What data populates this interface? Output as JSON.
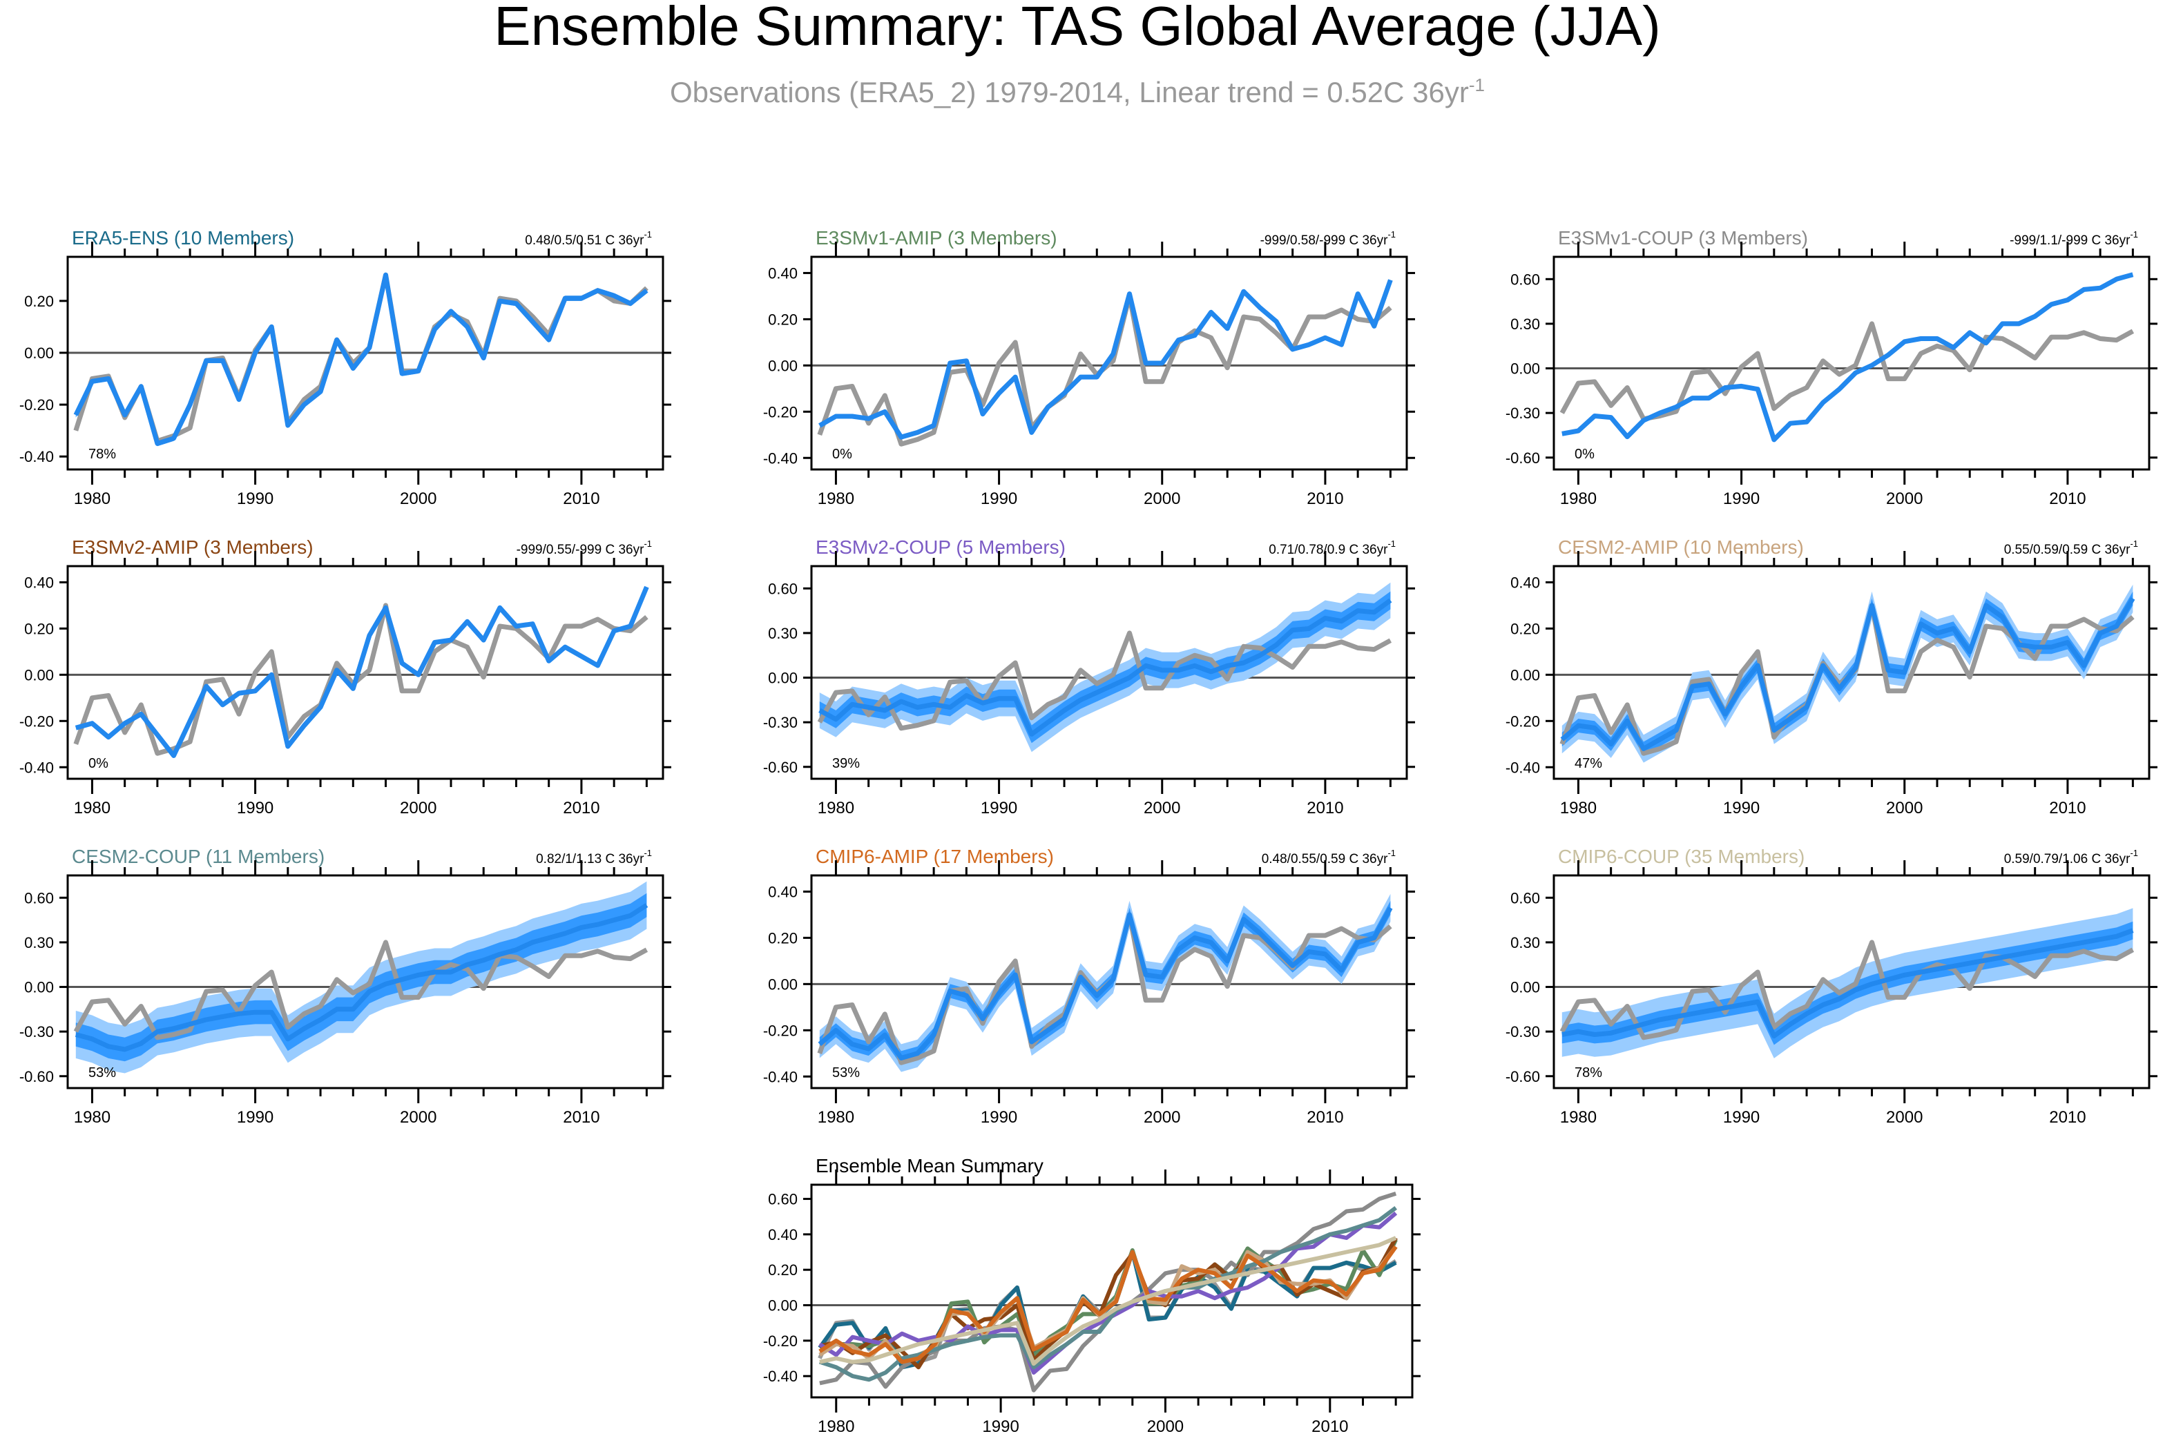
{
  "title": "Ensemble Summary: TAS Global Average (JJA)",
  "subtitle": "Observations (ERA5_2) 1979-2014, Linear trend = 0.52C 36yr",
  "subtitle_sup": "-1",
  "colors": {
    "observation": "#999999",
    "ensemble_mean": "#2288ee",
    "band_inner": "#3399ff",
    "band_outer": "#99ccff",
    "zero_line": "#555555"
  },
  "chart_data": {
    "type": "line",
    "x_range": [
      1978.5,
      2015.0
    ],
    "x_ticks": [
      1980,
      1990,
      2000,
      2010
    ],
    "observation": {
      "name": "ERA5_2",
      "years": [
        1979,
        1980,
        1981,
        1982,
        1983,
        1984,
        1985,
        1986,
        1987,
        1988,
        1989,
        1990,
        1991,
        1992,
        1993,
        1994,
        1995,
        1996,
        1997,
        1998,
        1999,
        2000,
        2001,
        2002,
        2003,
        2004,
        2005,
        2006,
        2007,
        2008,
        2009,
        2010,
        2011,
        2012,
        2013,
        2014
      ],
      "values": [
        -0.3,
        -0.1,
        -0.09,
        -0.25,
        -0.13,
        -0.34,
        -0.32,
        -0.29,
        -0.03,
        -0.02,
        -0.17,
        0.01,
        0.1,
        -0.27,
        -0.18,
        -0.13,
        0.05,
        -0.04,
        0.02,
        0.3,
        -0.07,
        -0.07,
        0.1,
        0.15,
        0.12,
        -0.01,
        0.21,
        0.2,
        0.14,
        0.07,
        0.21,
        0.21,
        0.24,
        0.2,
        0.19,
        0.25
      ]
    },
    "panels": [
      {
        "title": "ERA5-ENS (10 Members)",
        "title_color": "#1a6b8a",
        "trend": "0.48/0.5/0.51 C 36yr",
        "trend_sup": "-1",
        "percent": "78%",
        "yticks": [
          "0.20",
          "0.00",
          "-0.20",
          "-0.40"
        ],
        "ylim": [
          -0.45,
          0.37
        ],
        "x_labels": [
          "1980",
          "1990",
          "2000",
          "2010"
        ],
        "mean": [
          -0.24,
          -0.11,
          -0.1,
          -0.24,
          -0.13,
          -0.35,
          -0.33,
          -0.2,
          -0.03,
          -0.03,
          -0.18,
          0.0,
          0.1,
          -0.28,
          -0.2,
          -0.15,
          0.05,
          -0.06,
          0.02,
          0.3,
          -0.08,
          -0.07,
          0.09,
          0.16,
          0.1,
          -0.02,
          0.2,
          0.19,
          0.12,
          0.05,
          0.21,
          0.21,
          0.24,
          0.22,
          0.19,
          0.24
        ],
        "band_inner": 0.01,
        "band_outer": 0.01
      },
      {
        "title": "E3SMv1-AMIP (3 Members)",
        "title_color": "#5e8a5e",
        "trend": "-999/0.58/-999 C 36yr",
        "trend_sup": "-1",
        "percent": "0%",
        "yticks": [
          "0.40",
          "0.20",
          "0.00",
          "-0.20",
          "-0.40"
        ],
        "ylim": [
          -0.45,
          0.47
        ],
        "x_labels": [
          "1980",
          "1990",
          "2000",
          "2010"
        ],
        "mean": [
          -0.26,
          -0.22,
          -0.22,
          -0.23,
          -0.2,
          -0.31,
          -0.29,
          -0.26,
          0.01,
          0.02,
          -0.21,
          -0.12,
          -0.05,
          -0.29,
          -0.18,
          -0.12,
          -0.05,
          -0.05,
          0.05,
          0.31,
          0.01,
          0.01,
          0.11,
          0.13,
          0.23,
          0.16,
          0.32,
          0.25,
          0.19,
          0.07,
          0.09,
          0.12,
          0.09,
          0.31,
          0.17,
          0.37
        ],
        "band_inner": 0.0,
        "band_outer": 0.0
      },
      {
        "title": "E3SMv1-COUP (3 Members)",
        "title_color": "#8a8a8a",
        "trend": "-999/1.1/-999 C 36yr",
        "trend_sup": "-1",
        "percent": "0%",
        "yticks": [
          "0.60",
          "0.30",
          "0.00",
          "-0.30",
          "-0.60"
        ],
        "ylim": [
          -0.68,
          0.75
        ],
        "x_labels": [
          "1980",
          "1990",
          "2000",
          "2010"
        ],
        "mean": [
          -0.44,
          -0.42,
          -0.32,
          -0.33,
          -0.46,
          -0.35,
          -0.3,
          -0.26,
          -0.2,
          -0.2,
          -0.13,
          -0.12,
          -0.14,
          -0.48,
          -0.37,
          -0.36,
          -0.23,
          -0.14,
          -0.03,
          0.02,
          0.09,
          0.18,
          0.2,
          0.2,
          0.14,
          0.24,
          0.17,
          0.3,
          0.3,
          0.35,
          0.43,
          0.46,
          0.53,
          0.54,
          0.6,
          0.63
        ],
        "band_inner": 0.0,
        "band_outer": 0.0
      },
      {
        "title": "E3SMv2-AMIP (3 Members)",
        "title_color": "#8b4513",
        "trend": "-999/0.55/-999 C 36yr",
        "trend_sup": "-1",
        "percent": "0%",
        "yticks": [
          "0.40",
          "0.20",
          "0.00",
          "-0.20",
          "-0.40"
        ],
        "ylim": [
          -0.45,
          0.47
        ],
        "x_labels": [
          "1980",
          "1990",
          "2000",
          "2010"
        ],
        "mean": [
          -0.23,
          -0.21,
          -0.27,
          -0.21,
          -0.17,
          -0.26,
          -0.35,
          -0.2,
          -0.05,
          -0.13,
          -0.08,
          -0.07,
          0.0,
          -0.31,
          -0.22,
          -0.14,
          0.02,
          -0.06,
          0.17,
          0.29,
          0.05,
          0.0,
          0.14,
          0.15,
          0.23,
          0.15,
          0.29,
          0.21,
          0.22,
          0.06,
          0.12,
          0.08,
          0.04,
          0.19,
          0.21,
          0.38
        ],
        "band_inner": 0.0,
        "band_outer": 0.0
      },
      {
        "title": "E3SMv2-COUP (5 Members)",
        "title_color": "#7b5bc4",
        "trend": "0.71/0.78/0.9 C 36yr",
        "trend_sup": "-1",
        "percent": "39%",
        "yticks": [
          "0.60",
          "0.30",
          "0.00",
          "-0.30",
          "-0.60"
        ],
        "ylim": [
          -0.68,
          0.75
        ],
        "x_labels": [
          "1980",
          "1990",
          "2000",
          "2010"
        ],
        "mean": [
          -0.22,
          -0.28,
          -0.18,
          -0.2,
          -0.22,
          -0.16,
          -0.2,
          -0.18,
          -0.2,
          -0.12,
          -0.17,
          -0.14,
          -0.14,
          -0.38,
          -0.3,
          -0.22,
          -0.15,
          -0.1,
          -0.05,
          0.0,
          0.08,
          0.05,
          0.05,
          0.08,
          0.04,
          0.08,
          0.1,
          0.15,
          0.22,
          0.32,
          0.33,
          0.4,
          0.38,
          0.45,
          0.44,
          0.52
        ],
        "band_inner": 0.06,
        "band_outer": 0.12
      },
      {
        "title": "CESM2-AMIP (10 Members)",
        "title_color": "#c8a47e",
        "trend": "0.55/0.59/0.59 C 36yr",
        "trend_sup": "-1",
        "percent": "47%",
        "yticks": [
          "0.40",
          "0.20",
          "0.00",
          "-0.20",
          "-0.40"
        ],
        "ylim": [
          -0.45,
          0.47
        ],
        "x_labels": [
          "1980",
          "1990",
          "2000",
          "2010"
        ],
        "mean": [
          -0.28,
          -0.22,
          -0.23,
          -0.3,
          -0.2,
          -0.32,
          -0.28,
          -0.24,
          -0.05,
          -0.04,
          -0.17,
          -0.05,
          0.04,
          -0.24,
          -0.19,
          -0.14,
          0.04,
          -0.06,
          0.03,
          0.3,
          0.02,
          0.01,
          0.22,
          0.18,
          0.2,
          0.1,
          0.3,
          0.25,
          0.13,
          0.12,
          0.12,
          0.14,
          0.04,
          0.18,
          0.21,
          0.33
        ],
        "band_inner": 0.03,
        "band_outer": 0.06
      },
      {
        "title": "CESM2-COUP (11 Members)",
        "title_color": "#5b8a8f",
        "trend": "0.82/1/1.13 C 36yr",
        "trend_sup": "-1",
        "percent": "53%",
        "yticks": [
          "0.60",
          "0.30",
          "0.00",
          "-0.30",
          "-0.60"
        ],
        "ylim": [
          -0.68,
          0.75
        ],
        "x_labels": [
          "1980",
          "1990",
          "2000",
          "2010"
        ],
        "mean": [
          -0.32,
          -0.35,
          -0.4,
          -0.42,
          -0.38,
          -0.3,
          -0.28,
          -0.25,
          -0.22,
          -0.2,
          -0.18,
          -0.17,
          -0.17,
          -0.35,
          -0.28,
          -0.22,
          -0.15,
          -0.15,
          -0.03,
          0.02,
          0.05,
          0.08,
          0.1,
          0.1,
          0.15,
          0.18,
          0.22,
          0.25,
          0.3,
          0.33,
          0.36,
          0.4,
          0.42,
          0.45,
          0.48,
          0.55
        ],
        "band_inner": 0.08,
        "band_outer": 0.16
      },
      {
        "title": "CMIP6-AMIP (17 Members)",
        "title_color": "#d2691e",
        "trend": "0.48/0.55/0.59 C 36yr",
        "trend_sup": "-1",
        "percent": "53%",
        "yticks": [
          "0.40",
          "0.20",
          "0.00",
          "-0.20",
          "-0.40"
        ],
        "ylim": [
          -0.45,
          0.47
        ],
        "x_labels": [
          "1980",
          "1990",
          "2000",
          "2010"
        ],
        "mean": [
          -0.26,
          -0.2,
          -0.26,
          -0.28,
          -0.22,
          -0.32,
          -0.3,
          -0.22,
          -0.03,
          -0.05,
          -0.15,
          -0.04,
          0.04,
          -0.25,
          -0.2,
          -0.15,
          0.03,
          -0.05,
          0.02,
          0.3,
          0.04,
          0.03,
          0.15,
          0.2,
          0.18,
          0.1,
          0.28,
          0.22,
          0.15,
          0.08,
          0.14,
          0.13,
          0.06,
          0.18,
          0.2,
          0.33
        ],
        "band_inner": 0.03,
        "band_outer": 0.06
      },
      {
        "title": "CMIP6-COUP (35 Members)",
        "title_color": "#c8c0a0",
        "trend": "0.59/0.79/1.06 C 36yr",
        "trend_sup": "-1",
        "percent": "78%",
        "yticks": [
          "0.60",
          "0.30",
          "0.00",
          "-0.30",
          "-0.60"
        ],
        "ylim": [
          -0.68,
          0.75
        ],
        "x_labels": [
          "1980",
          "1990",
          "2000",
          "2010"
        ],
        "mean": [
          -0.32,
          -0.3,
          -0.32,
          -0.31,
          -0.28,
          -0.25,
          -0.22,
          -0.2,
          -0.18,
          -0.16,
          -0.14,
          -0.12,
          -0.1,
          -0.33,
          -0.25,
          -0.18,
          -0.12,
          -0.08,
          -0.02,
          0.02,
          0.05,
          0.08,
          0.1,
          0.12,
          0.14,
          0.16,
          0.18,
          0.2,
          0.22,
          0.24,
          0.26,
          0.28,
          0.3,
          0.32,
          0.34,
          0.38
        ],
        "band_inner": 0.06,
        "band_outer": 0.15
      }
    ],
    "summary": {
      "title": "Ensemble Mean Summary",
      "title_color": "#000000",
      "yticks": [
        "0.60",
        "0.40",
        "0.20",
        "0.00",
        "-0.20",
        "-0.40"
      ],
      "ylim": [
        -0.52,
        0.68
      ],
      "x_labels": [
        "1980",
        "1990",
        "2000",
        "2010"
      ]
    }
  }
}
